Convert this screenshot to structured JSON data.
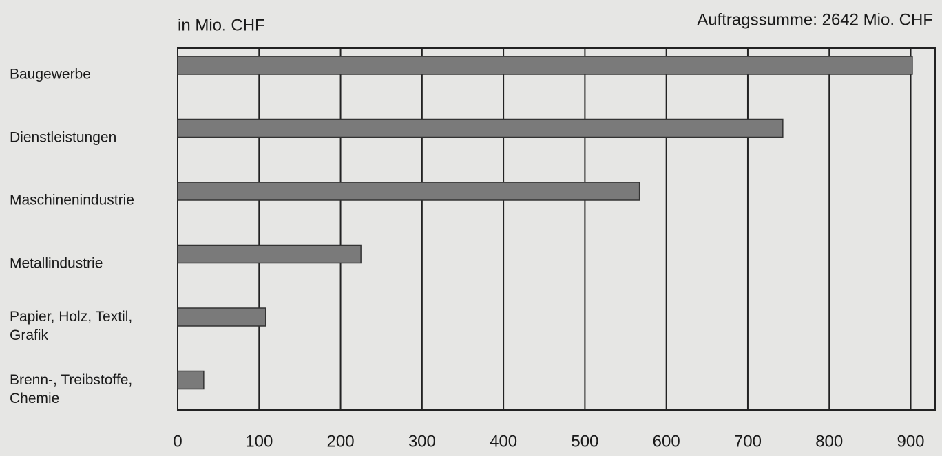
{
  "chart_data": {
    "type": "barh",
    "subtitle": "in Mio. CHF",
    "annotation": "Auftragssumme: 2642 Mio. CHF",
    "categories": [
      "Baugewerbe",
      "Dienstleistungen",
      "Maschinenindustrie",
      "Metallindustrie",
      "Papier, Holz, Textil, Grafik",
      "Brenn-, Treibstoffe, Chemie"
    ],
    "values": [
      902,
      743,
      567,
      225,
      108,
      32
    ],
    "color": "#7a7a7a",
    "xlim": [
      0,
      930
    ],
    "xticks": [
      0,
      100,
      200,
      300,
      400,
      500,
      600,
      700,
      800,
      900
    ],
    "grid": true
  }
}
